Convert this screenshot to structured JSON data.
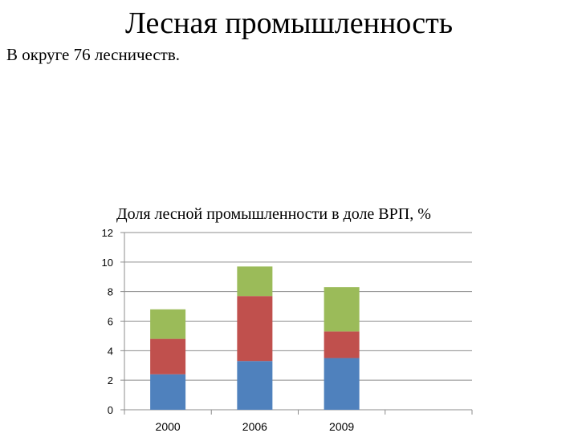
{
  "slide": {
    "title": "Лесная промышленность",
    "subtitle": "В округе 76 лесничеств."
  },
  "chart_data": {
    "type": "bar",
    "stacked": true,
    "title": "Доля лесной промышленности в доле ВРП, %",
    "categories": [
      "2000",
      "2006",
      "2009"
    ],
    "ylim": [
      0,
      12
    ],
    "yticks": [
      0,
      2,
      4,
      6,
      8,
      10,
      12
    ],
    "grid": true,
    "series": [
      {
        "color": "#4f81bd",
        "values": [
          2.4,
          3.3,
          3.5
        ]
      },
      {
        "color": "#c0504d",
        "values": [
          2.4,
          4.4,
          1.8
        ]
      },
      {
        "color": "#9bbb59",
        "values": [
          2.0,
          2.0,
          3.0
        ]
      }
    ]
  }
}
